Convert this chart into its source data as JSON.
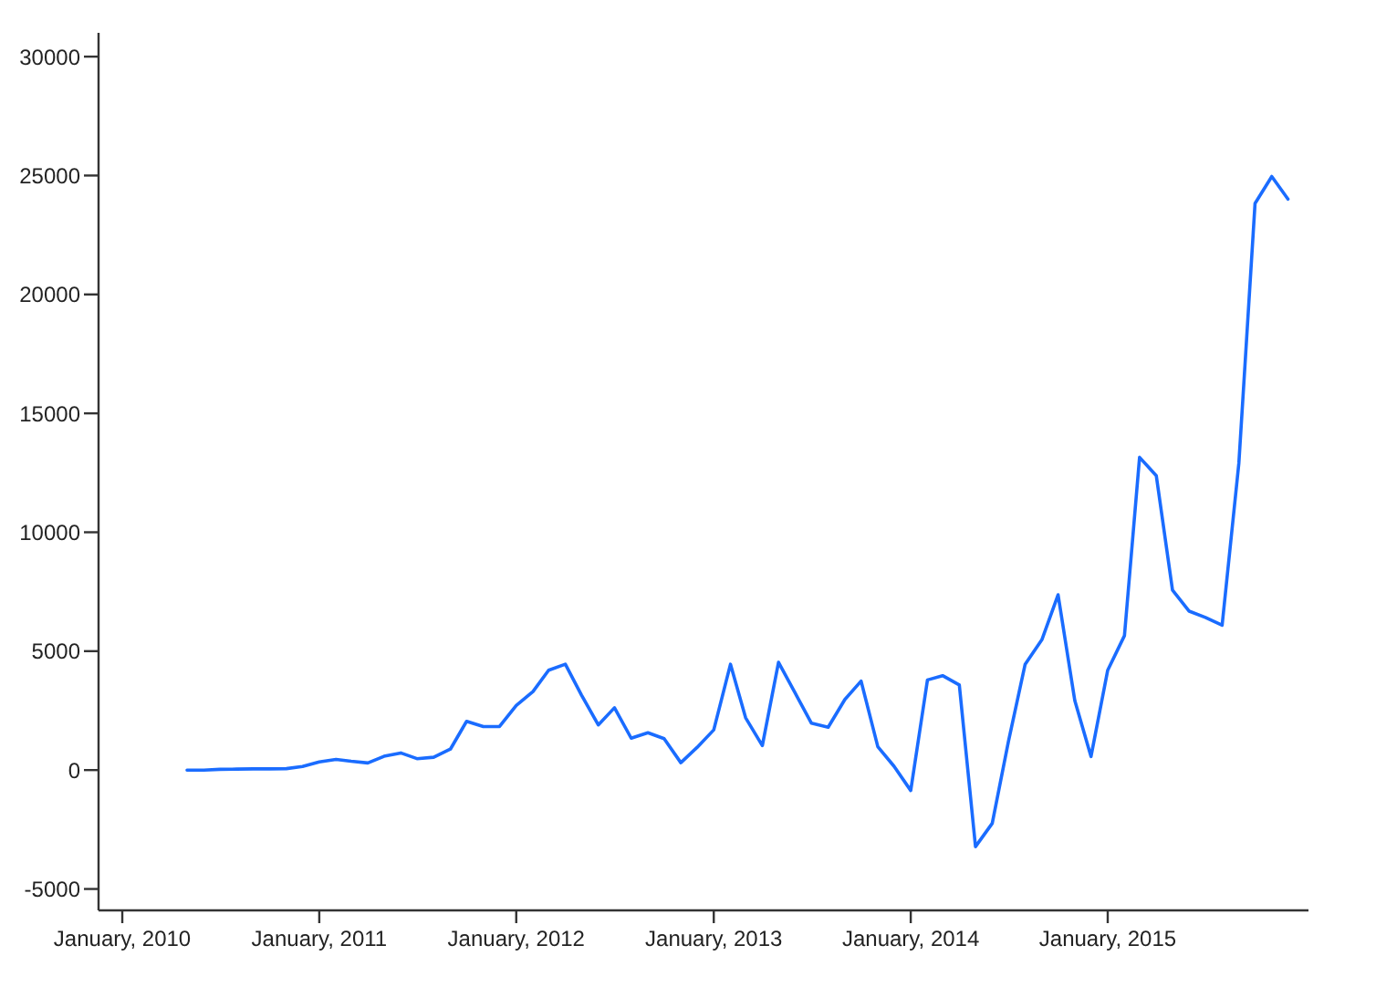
{
  "chart_data": {
    "type": "line",
    "color": "#1a6cff",
    "x": [
      "2010-05",
      "2010-06",
      "2010-07",
      "2010-08",
      "2010-09",
      "2010-10",
      "2010-11",
      "2010-12",
      "2011-01",
      "2011-02",
      "2011-03",
      "2011-04",
      "2011-05",
      "2011-06",
      "2011-07",
      "2011-08",
      "2011-09",
      "2011-10",
      "2011-11",
      "2011-12",
      "2012-01",
      "2012-02",
      "2012-03",
      "2012-04",
      "2012-05",
      "2012-06",
      "2012-07",
      "2012-08",
      "2012-09",
      "2012-10",
      "2012-11",
      "2012-12",
      "2013-01",
      "2013-02",
      "2013-03",
      "2013-04",
      "2013-05",
      "2013-06",
      "2013-07",
      "2013-08",
      "2013-09",
      "2013-10",
      "2013-11",
      "2013-12",
      "2014-01",
      "2014-02",
      "2014-03",
      "2014-04",
      "2014-05",
      "2014-06",
      "2014-07",
      "2014-08",
      "2014-09",
      "2014-10",
      "2014-11",
      "2014-12",
      "2015-01",
      "2015-02",
      "2015-03",
      "2015-04",
      "2015-05",
      "2015-06",
      "2015-07",
      "2015-08",
      "2015-09",
      "2015-10",
      "2015-11",
      "2015-12"
    ],
    "values": [
      0,
      0,
      30,
      40,
      50,
      50,
      60,
      150,
      340,
      450,
      370,
      300,
      580,
      720,
      480,
      540,
      880,
      2050,
      1830,
      1830,
      2720,
      3300,
      4200,
      4450,
      3150,
      1900,
      2620,
      1340,
      1570,
      1320,
      310,
      950,
      1690,
      4450,
      2200,
      1030,
      4530,
      3230,
      1970,
      1800,
      2970,
      3740,
      980,
      160,
      -860,
      3790,
      3970,
      3580,
      -3220,
      -2240,
      1200,
      4450,
      5480,
      7370,
      2920,
      570,
      4200,
      5650,
      13150,
      12380,
      7570,
      6680,
      6420,
      6090,
      12900,
      23830,
      24960,
      24010
    ],
    "xlim": [
      "2009-11-18",
      "2016-01-08"
    ],
    "xticks": [
      {
        "value": "2010-01",
        "label": "January, 2010"
      },
      {
        "value": "2011-01",
        "label": "January, 2011"
      },
      {
        "value": "2012-01",
        "label": "January, 2012"
      },
      {
        "value": "2013-01",
        "label": "January, 2013"
      },
      {
        "value": "2014-01",
        "label": "January, 2014"
      },
      {
        "value": "2015-01",
        "label": "January, 2015"
      }
    ],
    "ylim": [
      -5900,
      31000
    ],
    "yticks": [
      -5000,
      0,
      5000,
      10000,
      15000,
      20000,
      25000,
      30000
    ]
  }
}
